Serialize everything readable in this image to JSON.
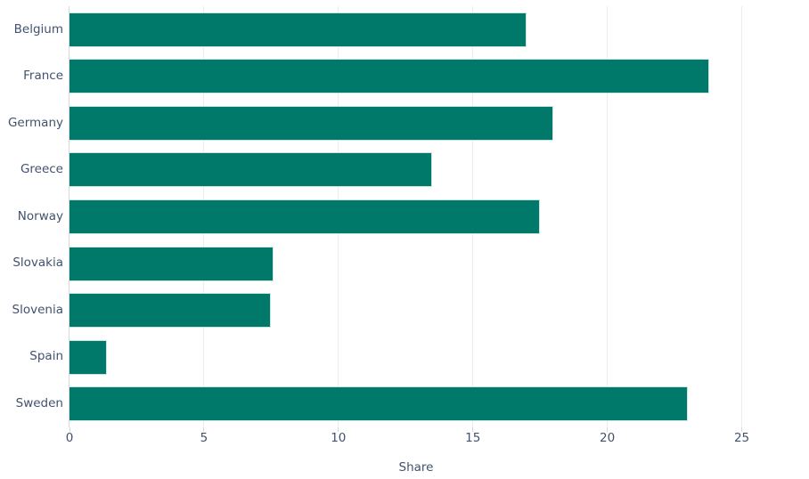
{
  "chart_data": {
    "type": "bar",
    "orientation": "horizontal",
    "title": "",
    "xlabel": "Share",
    "ylabel": "",
    "categories": [
      "Belgium",
      "France",
      "Germany",
      "Greece",
      "Norway",
      "Slovakia",
      "Slovenia",
      "Spain",
      "Sweden"
    ],
    "values": [
      17,
      23.8,
      18,
      13.5,
      17.5,
      7.6,
      7.5,
      1.4,
      23
    ],
    "xticks": [
      0,
      5,
      10,
      15,
      20,
      25
    ],
    "xlim": [
      0,
      27.5
    ],
    "grid": "vertical-only",
    "legend": "none",
    "colors": {
      "bar_fill": "#00796b",
      "bar_edge": "#cde6e1",
      "gridline": "#ececec",
      "axis_line": "#d9d9d9",
      "tick_mark": "#d9d9d9",
      "label_text": "#42526e",
      "background": "#ffffff"
    }
  }
}
